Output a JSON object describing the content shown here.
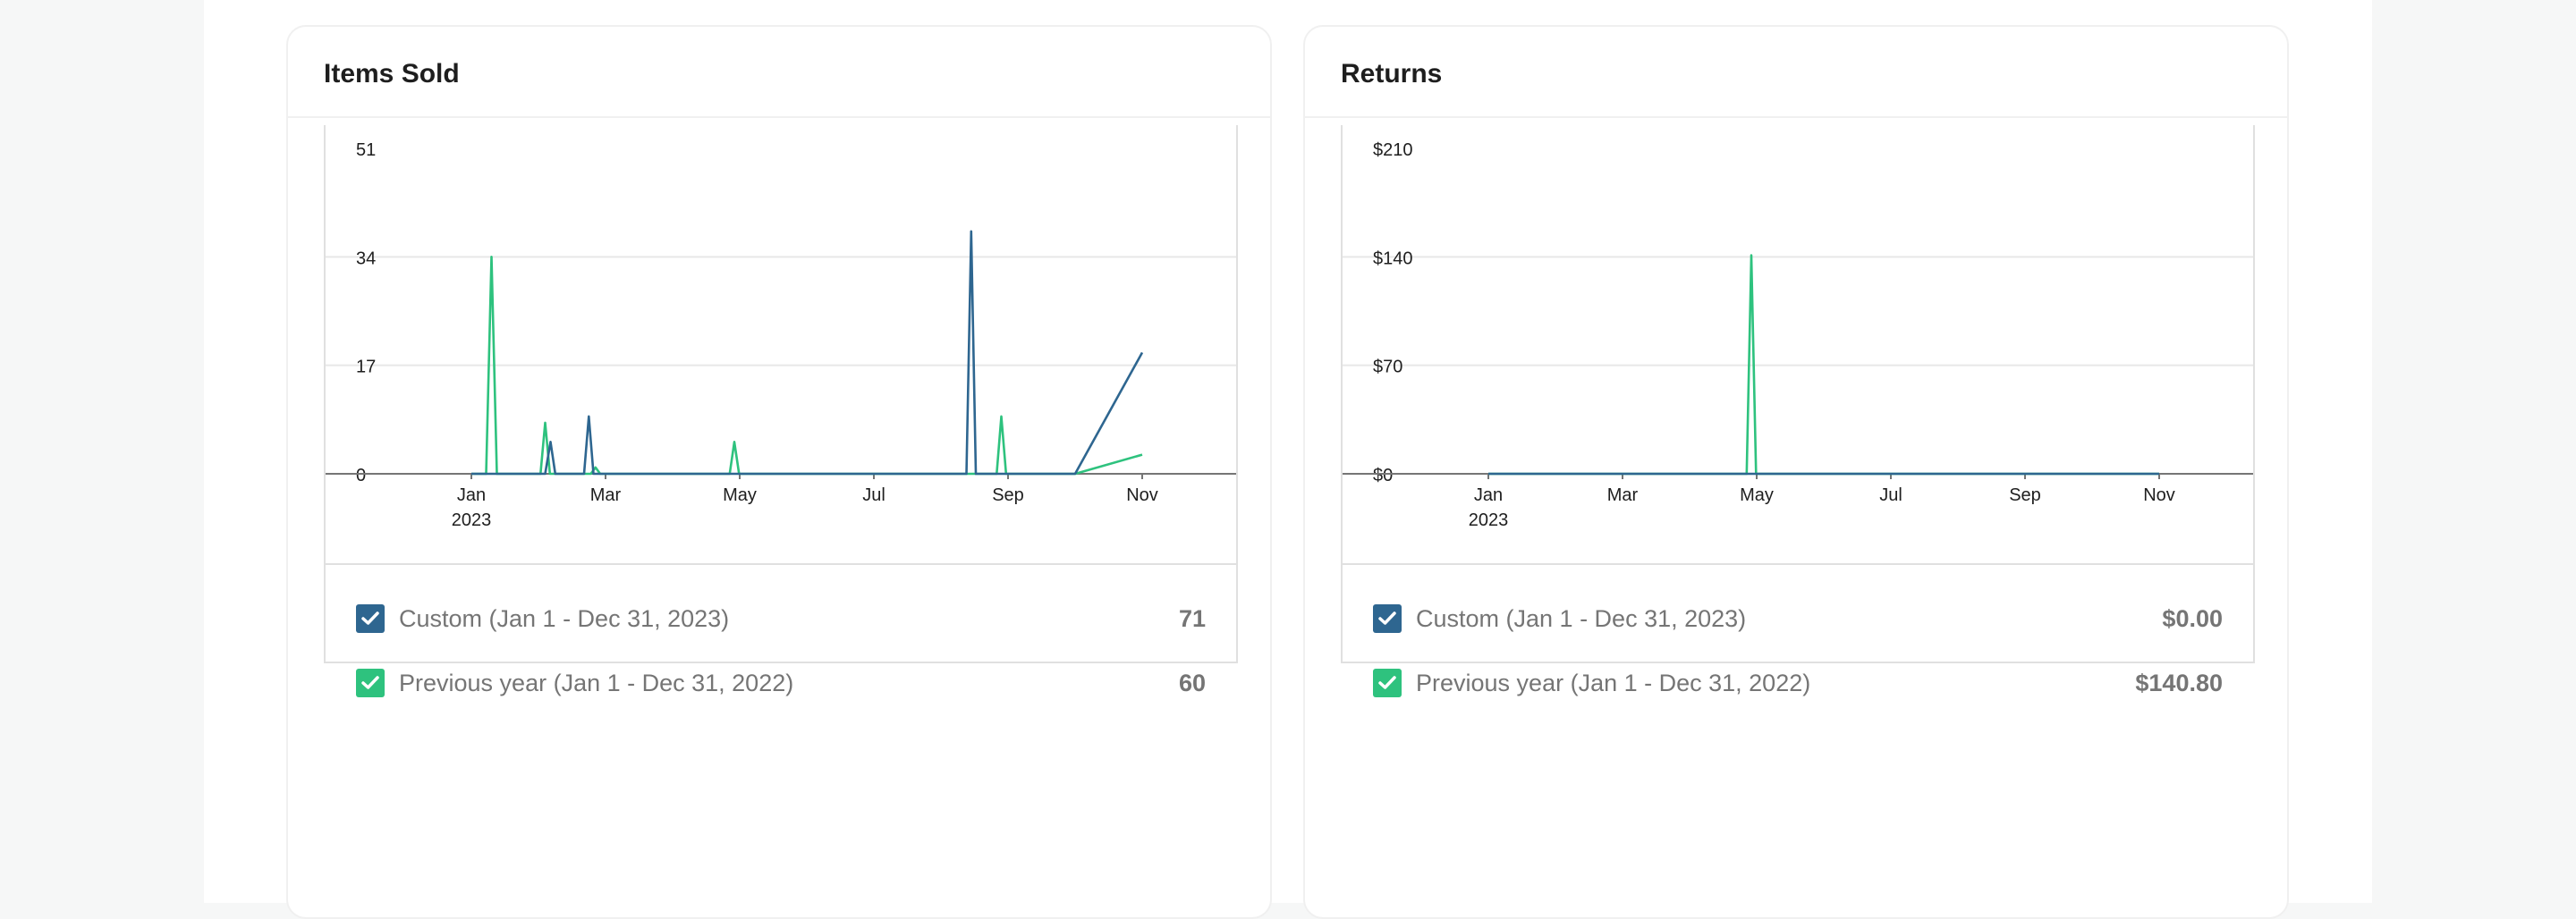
{
  "colors": {
    "custom": "#2e6690",
    "previous": "#2ec27e"
  },
  "cards": [
    {
      "title": "Items Sold",
      "legend": [
        {
          "label": "Custom (Jan 1 - Dec 31, 2023)",
          "value": "71",
          "color": "#2e6690",
          "checked": true
        },
        {
          "label": "Previous year (Jan 1 - Dec 31, 2022)",
          "value": "60",
          "color": "#2ec27e",
          "checked": true
        }
      ]
    },
    {
      "title": "Returns",
      "legend": [
        {
          "label": "Custom (Jan 1 - Dec 31, 2023)",
          "value": "$0.00",
          "color": "#2e6690",
          "checked": true
        },
        {
          "label": "Previous year (Jan 1 - Dec 31, 2022)",
          "value": "$140.80",
          "color": "#2ec27e",
          "checked": true
        }
      ]
    }
  ],
  "chart_data": [
    {
      "type": "line",
      "title": "Items Sold",
      "x_ticks": [
        "Jan",
        "Mar",
        "May",
        "Jul",
        "Sep",
        "Nov"
      ],
      "x_tick_months": [
        1,
        3,
        5,
        7,
        9,
        11
      ],
      "x_sublabel": "2023",
      "y_ticks": [
        "0",
        "17",
        "34",
        "51"
      ],
      "ylim": [
        0,
        51
      ],
      "xlim_months": [
        -1.15,
        11.0
      ],
      "grid": true,
      "series": [
        {
          "name": "Custom (Jan 1 - Dec 31, 2023)",
          "color": "#2e6690",
          "points": [
            [
              1.0,
              0
            ],
            [
              2.1,
              0
            ],
            [
              2.18,
              5
            ],
            [
              2.25,
              0
            ],
            [
              2.68,
              0
            ],
            [
              2.75,
              9
            ],
            [
              2.82,
              0
            ],
            [
              8.38,
              0
            ],
            [
              8.45,
              38
            ],
            [
              8.52,
              0
            ],
            [
              10.0,
              0
            ],
            [
              11.0,
              19
            ]
          ]
        },
        {
          "name": "Previous year (Jan 1 - Dec 31, 2022)",
          "color": "#2ec27e",
          "points": [
            [
              1.0,
              0
            ],
            [
              1.22,
              0
            ],
            [
              1.3,
              34
            ],
            [
              1.38,
              0
            ],
            [
              2.03,
              0
            ],
            [
              2.1,
              8
            ],
            [
              2.17,
              0
            ],
            [
              2.78,
              0
            ],
            [
              2.85,
              1
            ],
            [
              2.92,
              0
            ],
            [
              4.85,
              0
            ],
            [
              4.92,
              5
            ],
            [
              4.99,
              0
            ],
            [
              8.83,
              0
            ],
            [
              8.9,
              9
            ],
            [
              8.97,
              0
            ],
            [
              10.0,
              0
            ],
            [
              11.0,
              3
            ]
          ]
        }
      ]
    },
    {
      "type": "line",
      "title": "Returns",
      "x_ticks": [
        "Jan",
        "Mar",
        "May",
        "Jul",
        "Sep",
        "Nov"
      ],
      "x_tick_months": [
        1,
        3,
        5,
        7,
        9,
        11
      ],
      "x_sublabel": "2023",
      "y_ticks": [
        "$0",
        "$70",
        "$140",
        "$210"
      ],
      "ylim": [
        0,
        210
      ],
      "xlim_months": [
        -1.15,
        11.0
      ],
      "grid": true,
      "series": [
        {
          "name": "Custom (Jan 1 - Dec 31, 2023)",
          "color": "#2e6690",
          "points": [
            [
              1.0,
              0
            ],
            [
              11.0,
              0
            ]
          ]
        },
        {
          "name": "Previous year (Jan 1 - Dec 31, 2022)",
          "color": "#2ec27e",
          "points": [
            [
              1.0,
              0
            ],
            [
              4.85,
              0
            ],
            [
              4.92,
              141
            ],
            [
              4.99,
              0
            ],
            [
              11.0,
              0
            ]
          ]
        }
      ]
    }
  ]
}
